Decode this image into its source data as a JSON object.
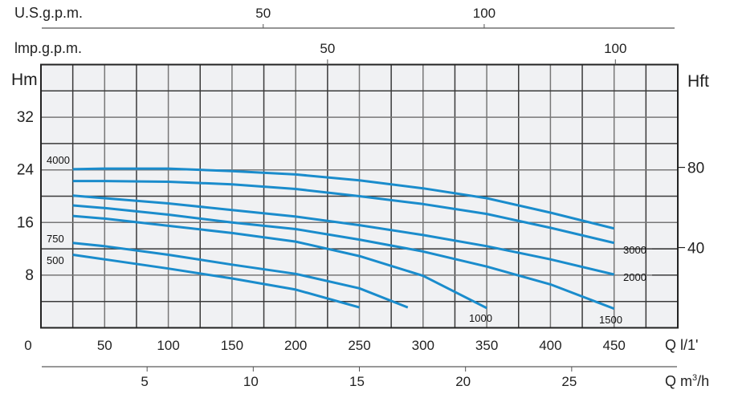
{
  "chart_data": {
    "type": "line",
    "title": "",
    "x_axis": {
      "label": "Q l/1'",
      "range": [
        0,
        500
      ],
      "ticks": [
        0,
        50,
        100,
        150,
        200,
        250,
        300,
        350,
        400,
        450
      ],
      "grid_step": 25
    },
    "y_axis": {
      "label": "Hm",
      "range": [
        0,
        40
      ],
      "ticks": [
        8,
        16,
        24,
        32
      ],
      "grid_step": 4
    },
    "y2_axis": {
      "label": "Hft",
      "ticks": [
        {
          "label": "80",
          "value_m": 24.38
        },
        {
          "label": "40",
          "value_m": 12.19
        }
      ]
    },
    "top_axis_us": {
      "label": "U.S.g.p.m.",
      "ticks": [
        {
          "label": "50",
          "q_lpm": 174.5
        },
        {
          "label": "100",
          "q_lpm": 348
        }
      ]
    },
    "top_axis_imp": {
      "label": "lmp.g.p.m.",
      "ticks": [
        {
          "label": "50",
          "q_lpm": 225
        },
        {
          "label": "100",
          "q_lpm": 451
        }
      ]
    },
    "bottom_axis_m3h": {
      "label": "Q m",
      "label_sup": "3",
      "label_tail": "/h",
      "ticks": [
        5,
        10,
        15,
        20,
        25
      ],
      "lpm_per_unit": 16.667
    },
    "grid": true,
    "colors": {
      "curve": "#1a8ccc",
      "plot_bg": "#f0f1f3",
      "grid": "#3a3a3a"
    },
    "series": [
      {
        "name": "4000",
        "x": [
          25,
          50,
          100,
          150,
          200,
          250,
          300,
          350,
          400,
          450
        ],
        "y": [
          24.1,
          24.2,
          24.2,
          23.8,
          23.3,
          22.4,
          21.2,
          19.7,
          17.5,
          15.1
        ]
      },
      {
        "name": "3000",
        "x": [
          25,
          50,
          100,
          150,
          200,
          250,
          300,
          350,
          400,
          450
        ],
        "y": [
          22.3,
          22.3,
          22.2,
          21.8,
          21.1,
          20.0,
          18.8,
          17.3,
          15.2,
          12.9
        ]
      },
      {
        "name": "2000",
        "x": [
          25,
          50,
          100,
          150,
          200,
          250,
          300,
          350,
          400,
          450
        ],
        "y": [
          20.1,
          19.7,
          18.9,
          17.9,
          16.9,
          15.6,
          14.1,
          12.4,
          10.4,
          8.1
        ]
      },
      {
        "name": "1500",
        "x": [
          25,
          50,
          100,
          150,
          200,
          250,
          300,
          350,
          400,
          450
        ],
        "y": [
          18.6,
          18.2,
          17.2,
          16.0,
          15.0,
          13.4,
          11.6,
          9.3,
          6.6,
          2.9
        ]
      },
      {
        "name": "1000",
        "x": [
          25,
          50,
          100,
          150,
          200,
          250,
          300,
          350
        ],
        "y": [
          17.0,
          16.6,
          15.5,
          14.4,
          13.1,
          10.9,
          7.9,
          3.0
        ]
      },
      {
        "name": "750",
        "x": [
          25,
          50,
          100,
          150,
          200,
          250,
          288
        ],
        "y": [
          12.9,
          12.4,
          11.1,
          9.6,
          8.2,
          6.0,
          3.1
        ]
      },
      {
        "name": "500",
        "x": [
          25,
          50,
          100,
          150,
          200,
          250
        ],
        "y": [
          11.1,
          10.4,
          9.0,
          7.5,
          5.8,
          3.1
        ]
      }
    ],
    "curve_labels": [
      "4000",
      "3000",
      "2000",
      "1500",
      "1000",
      "750",
      "500"
    ]
  }
}
